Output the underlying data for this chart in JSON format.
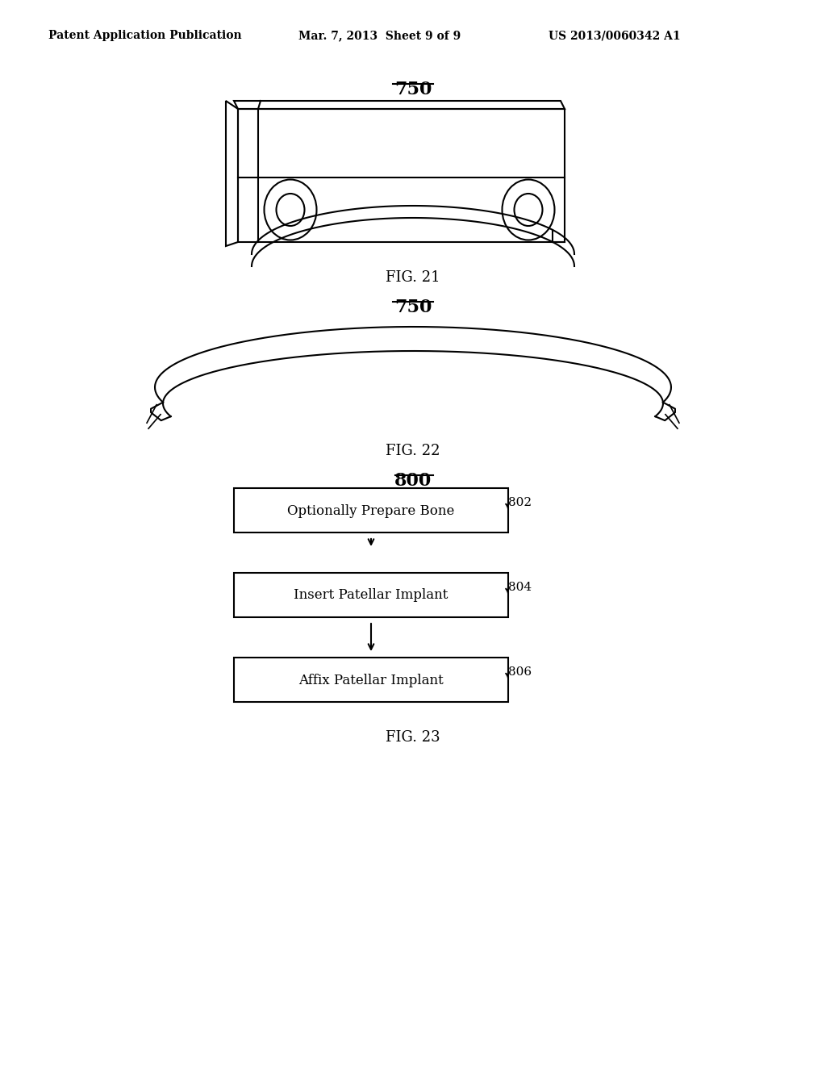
{
  "bg_color": "#ffffff",
  "header_left": "Patent Application Publication",
  "header_mid": "Mar. 7, 2013  Sheet 9 of 9",
  "header_right": "US 2013/0060342 A1",
  "fig21_label": "FIG. 21",
  "fig22_label": "FIG. 22",
  "fig23_label": "FIG. 23",
  "ref_750": "750",
  "ref_800": "800",
  "ref_802": "802",
  "ref_804": "804",
  "ref_806": "806",
  "box1_text": "Optionally Prepare Bone",
  "box2_text": "Insert Patellar Implant",
  "box3_text": "Affix Patellar Implant",
  "line_color": "#000000",
  "line_width": 1.5
}
